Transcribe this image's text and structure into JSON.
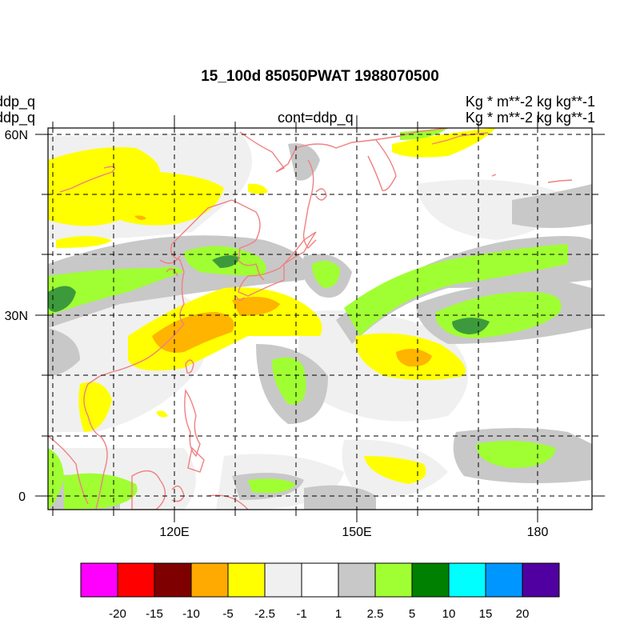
{
  "header": {
    "title": "15_100d 85050PWAT  1988070500",
    "left_line1": "ddp_q",
    "left_line2": "ddp_q",
    "center_line": "cont=ddp_q",
    "right_line1": "Kg   * m**-2 kg kg**-1",
    "right_line2": "Kg   * m**-2 kg kg**-1"
  },
  "map": {
    "lat_labels": [
      {
        "text": "60N",
        "lat": 60
      },
      {
        "text": "30N",
        "lat": 30
      },
      {
        "text": "0",
        "lat": 0
      }
    ],
    "lon_labels": [
      {
        "text": "120E",
        "lon": 120
      },
      {
        "text": "150E",
        "lon": 150
      },
      {
        "text": "180",
        "lon": 180
      }
    ],
    "lon_range": [
      100,
      187
    ],
    "lat_range": [
      -2,
      60
    ],
    "grid_lons": [
      100,
      110,
      120,
      130,
      140,
      150,
      160,
      170,
      180
    ],
    "grid_lats": [
      0,
      10,
      20,
      30,
      40,
      50,
      60
    ],
    "coastline_color": "#f08080"
  },
  "colorbar": {
    "colors": [
      "#ff00ff",
      "#ff0000",
      "#7f0000",
      "#ffaa00",
      "#ffff00",
      "#f0f0f0",
      "#ffffff",
      "#c8c8c8",
      "#a0ff32",
      "#008000",
      "#00ffff",
      "#0096ff",
      "#5000a0"
    ],
    "labels": [
      "-20",
      "-15",
      "-10",
      "-5",
      "-2.5",
      "-1",
      "1",
      "2.5",
      "5",
      "10",
      "15",
      "20"
    ]
  }
}
